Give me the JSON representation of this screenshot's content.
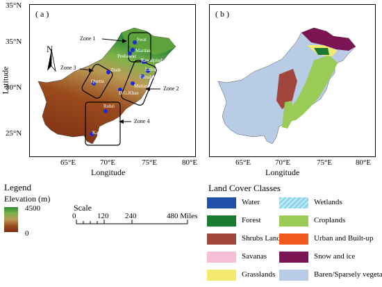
{
  "panel_a": {
    "label": "( a )",
    "zones": [
      "Zone 1",
      "Zone 2",
      "Zone 3",
      "Zone 4"
    ],
    "cities": [
      "Swat",
      "Mardan",
      "Peshawar",
      "Rawalpindi",
      "Lahore",
      "Faisalabad",
      "Multan",
      "D.G.Khan",
      "Zhob",
      "Quetta",
      "Rohri",
      "Karachi"
    ]
  },
  "panel_b": {
    "label": "( b )"
  },
  "axes": {
    "y_ticks": [
      "35°N",
      "30°N",
      "25°N"
    ],
    "y_top_tick": "35°N",
    "x_ticks": [
      "65°E",
      "70°E",
      "75°E",
      "80°E"
    ],
    "xlabel": "Longitude",
    "ylabel": "Latitude"
  },
  "north_arrow": "N",
  "elevation_legend": {
    "legend_title": "Legend",
    "title": "Elevation (m)",
    "max": "4500",
    "min": "0"
  },
  "scale_bar": {
    "title": "Scale",
    "labels": [
      "0",
      "120",
      "240",
      "480 Miles"
    ]
  },
  "land_cover_legend": {
    "title": "Land Cover Classes",
    "classes": [
      {
        "label": "Water",
        "color": "#1f4fa8"
      },
      {
        "label": "Wetlands",
        "color": "#8fd4ea"
      },
      {
        "label": "Forest",
        "color": "#1a7a2e"
      },
      {
        "label": "Croplands",
        "color": "#9acb57"
      },
      {
        "label": "Shrubs Land",
        "color": "#a0463c"
      },
      {
        "label": "Urban and Built-up",
        "color": "#f25a1e"
      },
      {
        "label": "Savanas",
        "color": "#f7bfd6"
      },
      {
        "label": "Snow and ice",
        "color": "#7a1452"
      },
      {
        "label": "Grasslands",
        "color": "#f4ea6e"
      },
      {
        "label": "Baren/Sparsely vegetated",
        "color": "#b8cce6"
      }
    ]
  }
}
